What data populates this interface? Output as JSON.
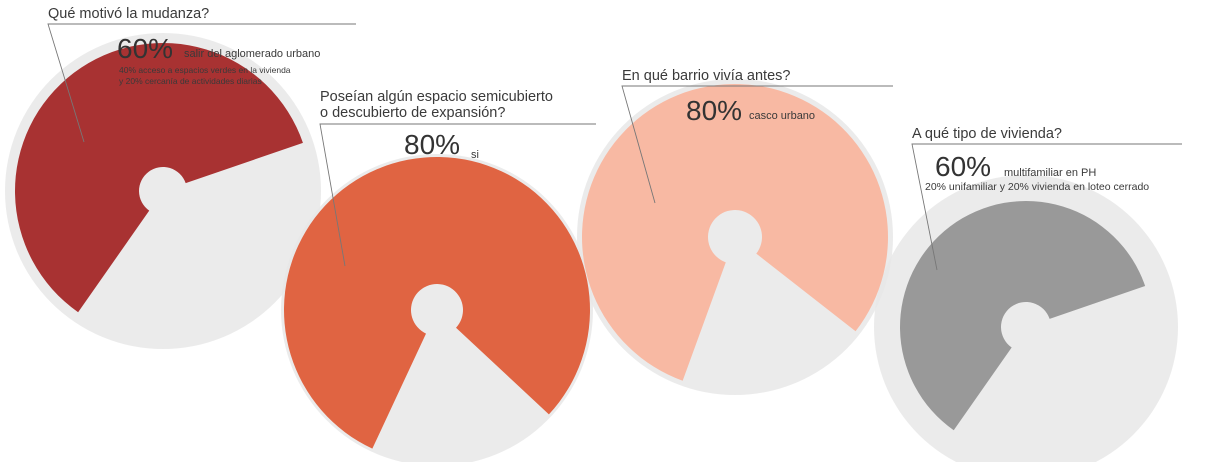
{
  "chart_data": [
    {
      "type": "pie",
      "question": "Qué motivó la mudanza?",
      "percent_label": "60%",
      "main_answer": "salir del aglomerado urbano",
      "details": [
        "40% acceso a espacios verdes en la vivienda",
        "y 20% cercanía de actividades diarias"
      ],
      "value": 60,
      "color": "#a83232"
    },
    {
      "type": "pie",
      "question_lines": [
        "Poseían algún espacio semicubierto",
        "o descubierto de expansión?"
      ],
      "percent_label": "80%",
      "main_answer": "si",
      "value": 80,
      "color": "#e06442"
    },
    {
      "type": "pie",
      "question": "En qué barrio vivía antes?",
      "percent_label": "80%",
      "main_answer": "casco urbano",
      "value": 80,
      "color": "#f8b9a3"
    },
    {
      "type": "pie",
      "question": "A qué tipo de vivienda?",
      "percent_label": "60%",
      "main_answer": "multifamiliar en PH",
      "details": [
        "20% unifamiliar y 20% vivienda en loteo cerrado"
      ],
      "value": 60,
      "color": "#999999"
    }
  ],
  "colors": {
    "background_circle": "#e8e8e8",
    "leader_line": "#777777"
  }
}
